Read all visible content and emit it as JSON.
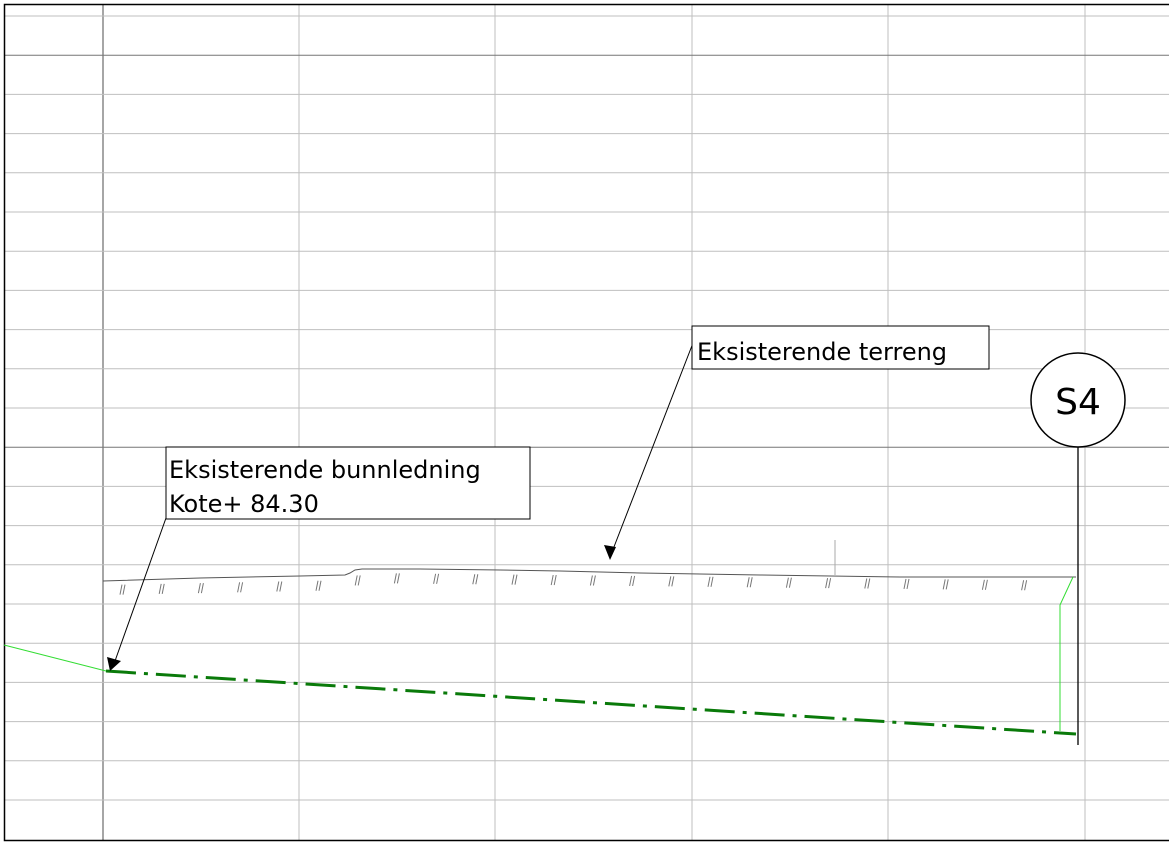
{
  "drawing": {
    "callouts": {
      "terrain": {
        "label": "Eksisterende terreng"
      },
      "bottom_pipe": {
        "line1": "Eksisterende bunnledning",
        "line2": "Kote+ 84.30"
      }
    },
    "section_marker": {
      "label": "S4"
    },
    "colors": {
      "grid": "#bfbfbf",
      "frame": "#000000",
      "terrain": "#555555",
      "pipe": "#0a7a0a",
      "pipe_light": "#33dd33"
    }
  }
}
